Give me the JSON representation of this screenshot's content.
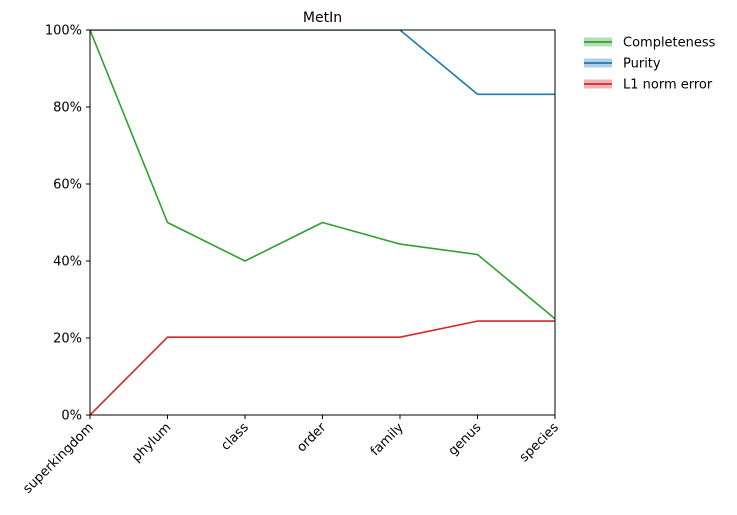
{
  "chart_data": {
    "type": "line",
    "title": "MetIn",
    "xlabel": "",
    "ylabel": "",
    "categories": [
      "superkingdom",
      "phylum",
      "class",
      "order",
      "family",
      "genus",
      "species"
    ],
    "ylim": [
      0,
      100
    ],
    "yticks": [
      "0%",
      "20%",
      "40%",
      "60%",
      "80%",
      "100%"
    ],
    "ytick_values": [
      0,
      20,
      40,
      60,
      80,
      100
    ],
    "grid": false,
    "legend_position": "outside-top-right",
    "series": [
      {
        "name": "Completeness",
        "color": "#2ca02c",
        "values": [
          100,
          50,
          40,
          50,
          44.4,
          41.7,
          25
        ]
      },
      {
        "name": "Purity",
        "color": "#1f77b4",
        "values": [
          100,
          100,
          100,
          100,
          100,
          83.3,
          83.3
        ]
      },
      {
        "name": "L1 norm error",
        "color": "#d62728",
        "values": [
          0,
          20.2,
          20.2,
          20.2,
          20.2,
          24.4,
          24.4
        ]
      }
    ]
  }
}
